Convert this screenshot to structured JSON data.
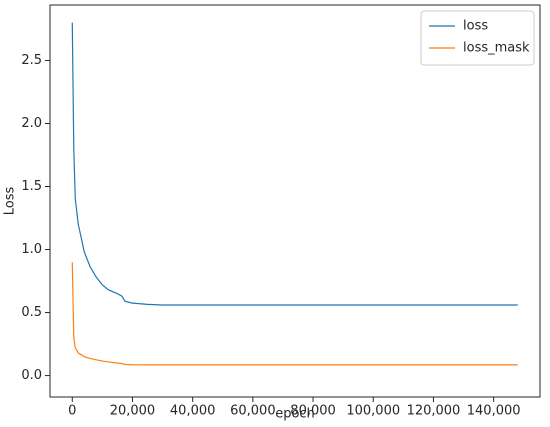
{
  "chart_data": {
    "type": "line",
    "x_label": "epoch",
    "y_label": "Loss",
    "x": [
      0,
      500,
      1000,
      2000,
      4000,
      6000,
      8000,
      10000,
      12000,
      15000,
      16500,
      17500,
      20000,
      25000,
      30000,
      40000,
      60000,
      80000,
      100000,
      120000,
      140000,
      148000
    ],
    "series": [
      {
        "name": "loss",
        "color": "#1f77b4",
        "values": [
          2.8,
          1.8,
          1.4,
          1.2,
          0.98,
          0.86,
          0.78,
          0.72,
          0.68,
          0.65,
          0.63,
          0.59,
          0.575,
          0.565,
          0.56,
          0.56,
          0.56,
          0.56,
          0.56,
          0.56,
          0.56,
          0.56
        ]
      },
      {
        "name": "loss_mask",
        "color": "#ff7f0e",
        "values": [
          0.9,
          0.3,
          0.22,
          0.18,
          0.15,
          0.135,
          0.125,
          0.115,
          0.108,
          0.1,
          0.095,
          0.088,
          0.086,
          0.085,
          0.085,
          0.085,
          0.085,
          0.085,
          0.085,
          0.085,
          0.085,
          0.085
        ]
      }
    ],
    "xlim": [
      -7400,
      155400
    ],
    "xticks": [
      0,
      {
        "value": 20000,
        "label": "20,000"
      },
      {
        "value": 40000,
        "label": "40,000"
      },
      {
        "value": 60000,
        "label": "60,000"
      },
      {
        "value": 80000,
        "label": "80,000"
      },
      {
        "value": 100000,
        "label": "100,000"
      },
      {
        "value": 120000,
        "label": "120,000"
      },
      {
        "value": 140000,
        "label": "140,000"
      }
    ],
    "ylim": [
      -0.17,
      2.94
    ],
    "yticks": [
      {
        "value": 0.0,
        "label": "0.0"
      },
      0.5,
      {
        "value": 1.0,
        "label": "1.0"
      },
      1.5,
      {
        "value": 2.0,
        "label": "2.0"
      },
      2.5
    ],
    "grid": false,
    "legend": "upper right"
  }
}
